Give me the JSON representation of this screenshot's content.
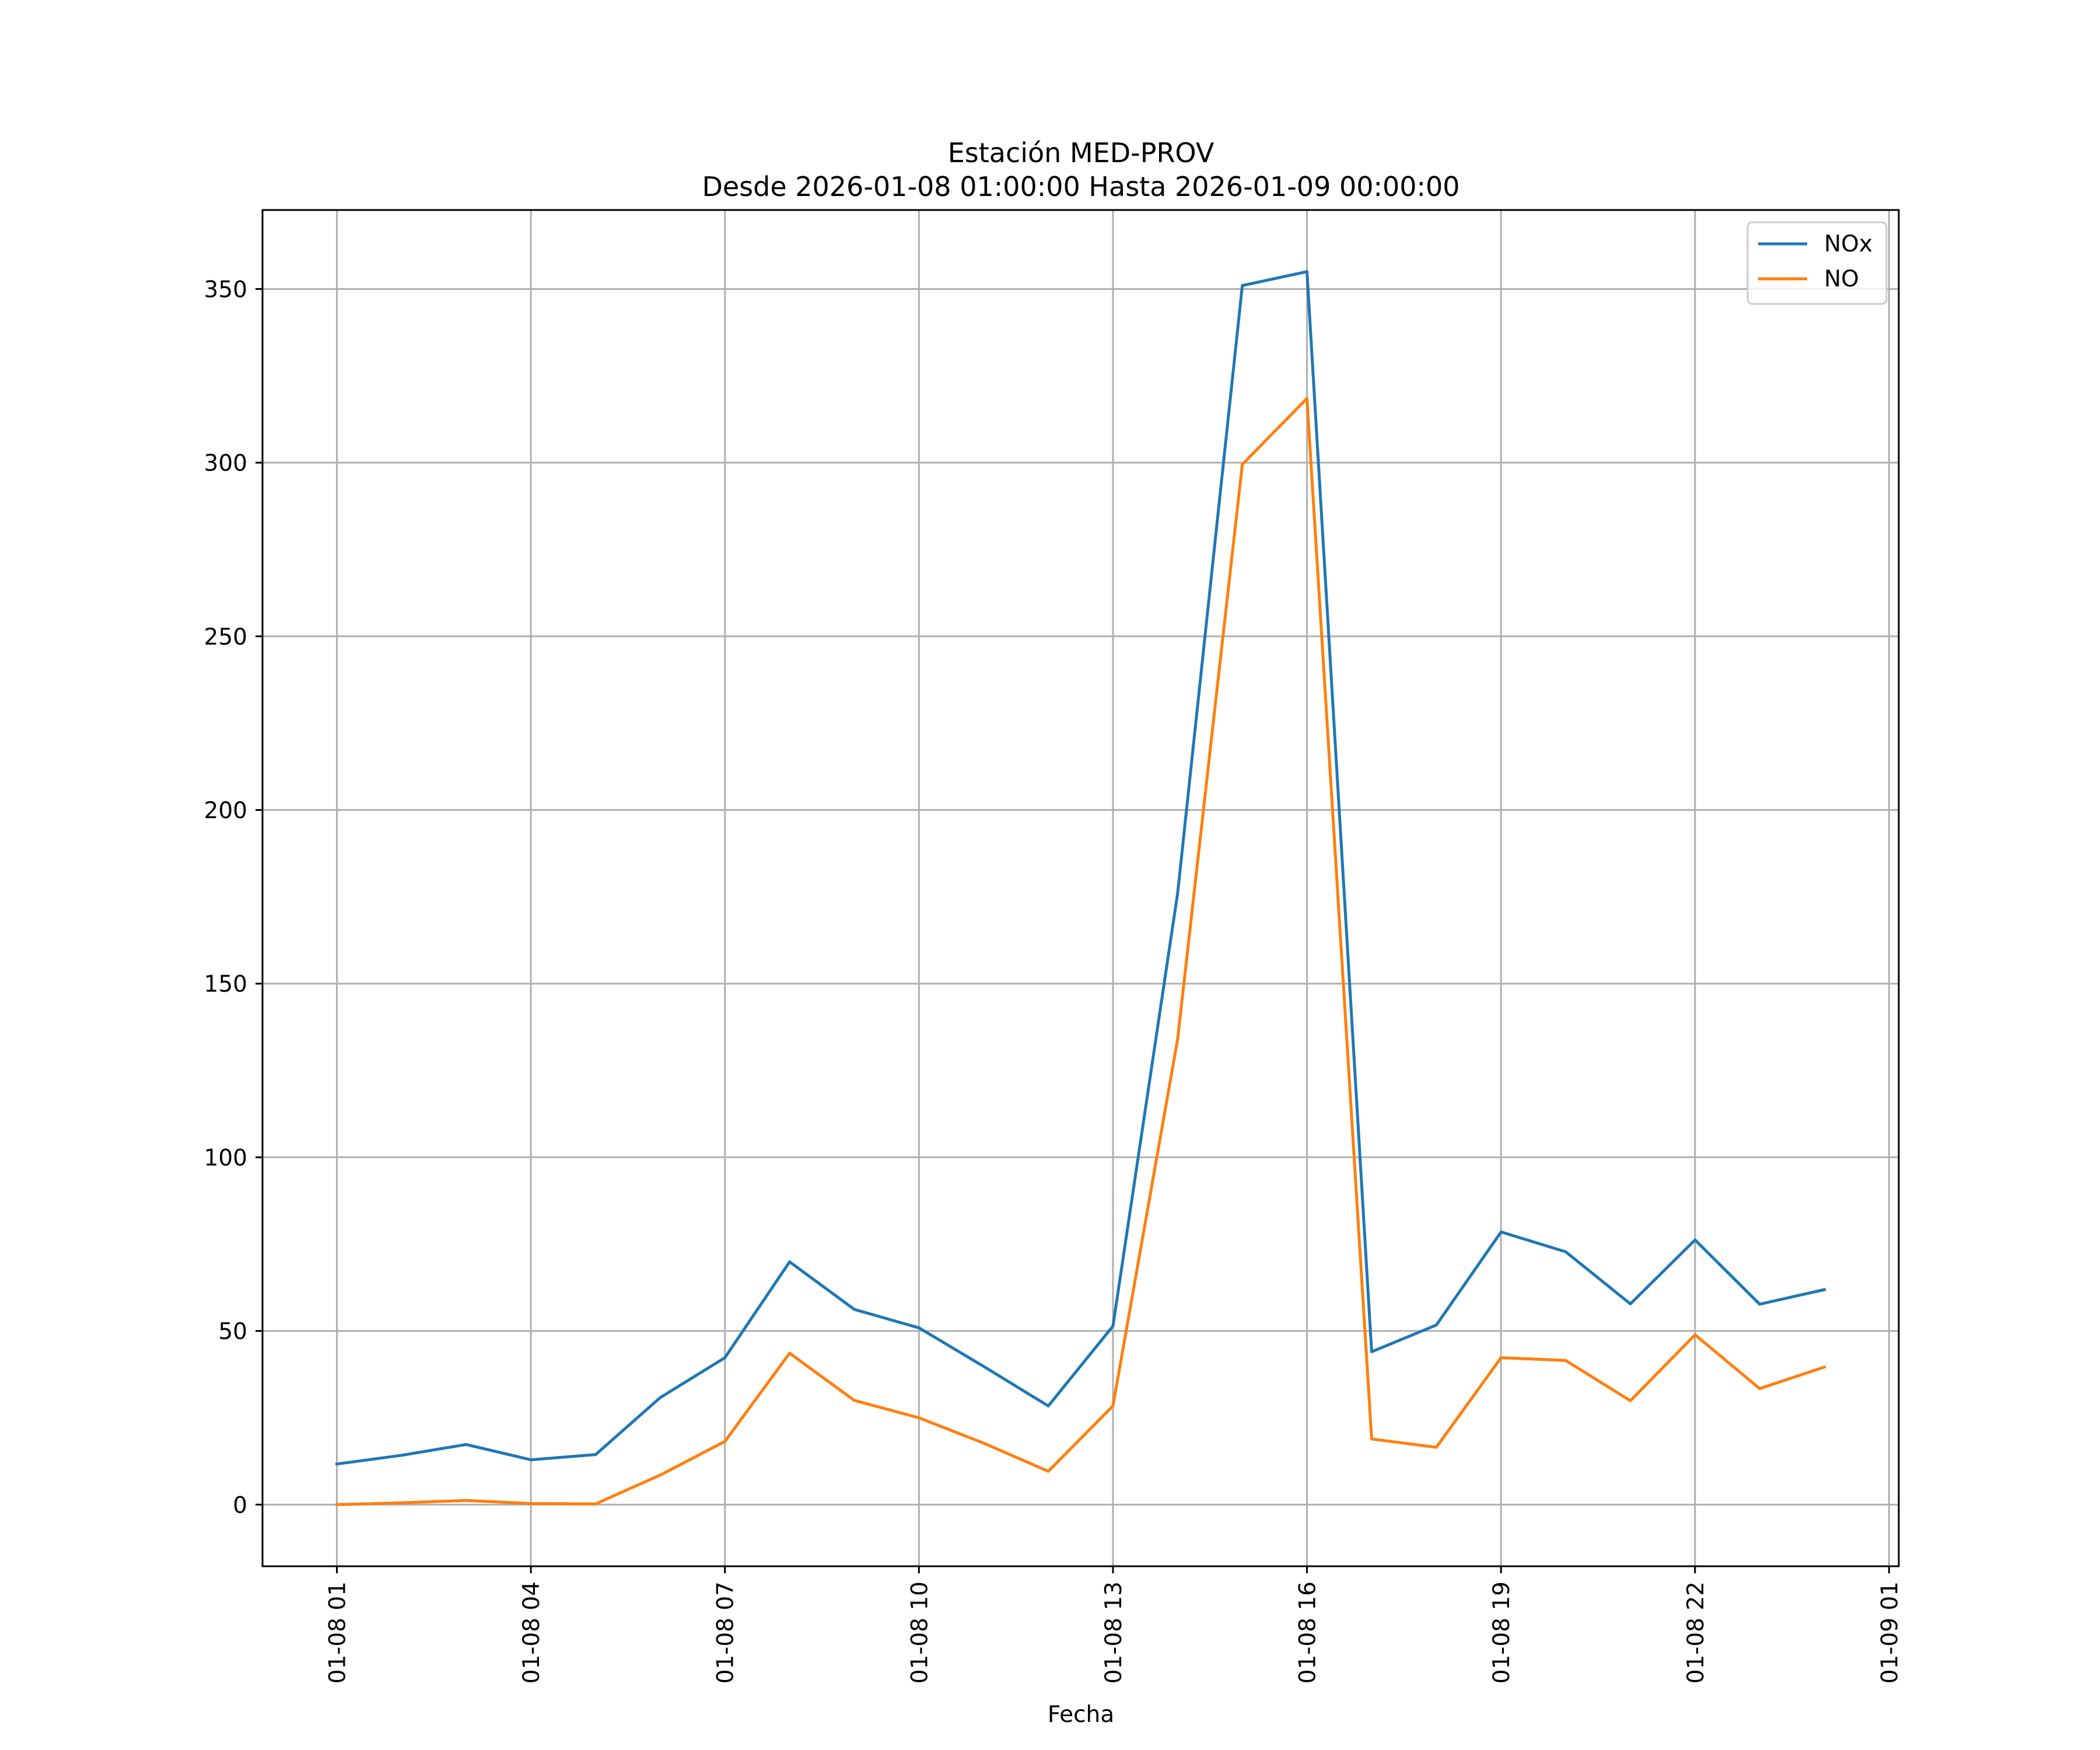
{
  "chart_data": {
    "type": "line",
    "title": "Estación MED-PROV",
    "subtitle": "Desde 2026-01-08 01:00:00 Hasta 2026-01-09 00:00:00",
    "xlabel": "Fecha",
    "ylabel": "",
    "x_unit": "hour",
    "x_start": "2026-01-08 01:00",
    "x": [
      "01-08 01",
      "01-08 02",
      "01-08 03",
      "01-08 04",
      "01-08 05",
      "01-08 06",
      "01-08 07",
      "01-08 08",
      "01-08 09",
      "01-08 10",
      "01-08 11",
      "01-08 12",
      "01-08 13",
      "01-08 14",
      "01-08 15",
      "01-08 16",
      "01-08 17",
      "01-08 18",
      "01-08 19",
      "01-08 20",
      "01-08 21",
      "01-08 22",
      "01-08 23",
      "01-09 00"
    ],
    "series": [
      {
        "name": "NOx",
        "color": "#1f77b4",
        "values": [
          11.7,
          14.2,
          17.3,
          12.9,
          14.4,
          30.8,
          42.3,
          69.9,
          56.2,
          50.9,
          39.8,
          28.4,
          51.4,
          176.0,
          351.0,
          355.0,
          44.0,
          51.7,
          78.5,
          72.8,
          57.8,
          76.2,
          57.7,
          61.9
        ]
      },
      {
        "name": "NO",
        "color": "#ff7f0e",
        "values": [
          0.0,
          0.5,
          1.2,
          0.3,
          0.2,
          8.5,
          18.2,
          43.6,
          30.0,
          25.0,
          17.7,
          9.6,
          28.4,
          134.0,
          299.5,
          318.5,
          18.9,
          16.5,
          42.3,
          41.5,
          29.9,
          48.9,
          33.4,
          39.6
        ]
      }
    ],
    "xticks": [
      "01-08 01",
      "01-08 04",
      "01-08 07",
      "01-08 10",
      "01-08 13",
      "01-08 16",
      "01-08 19",
      "01-08 22",
      "01-09 01"
    ],
    "xtick_hours": [
      0,
      3,
      6,
      9,
      12,
      15,
      18,
      21,
      24
    ],
    "yticks": [
      0,
      50,
      100,
      150,
      200,
      250,
      300,
      350
    ],
    "xlim_hours": [
      -1.15,
      24.15
    ],
    "ylim": [
      -17.75,
      372.75
    ],
    "grid": true,
    "legend_position": "top-right"
  }
}
